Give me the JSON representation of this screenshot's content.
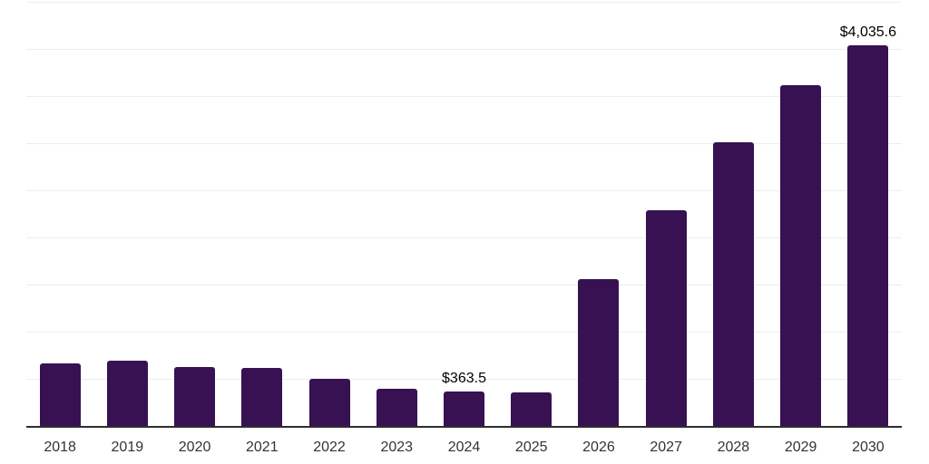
{
  "chart_data": {
    "type": "bar",
    "title": "",
    "xlabel": "",
    "ylabel": "",
    "categories": [
      "2018",
      "2019",
      "2020",
      "2021",
      "2022",
      "2023",
      "2024",
      "2025",
      "2026",
      "2027",
      "2028",
      "2029",
      "2030"
    ],
    "values": [
      663,
      692,
      625,
      615,
      500,
      394,
      363.5,
      360,
      1558,
      2289,
      3010,
      3616,
      4035.6
    ],
    "data_labels": [
      "",
      "",
      "",
      "",
      "",
      "",
      "$363.5",
      "",
      "",
      "",
      "",
      "",
      "$4,035.6"
    ],
    "ylim": [
      0,
      4500
    ],
    "gridline_step": 500,
    "grid": true,
    "y_tick_labels_visible": false,
    "legend_position": "none"
  },
  "colors": {
    "bar": "#371151",
    "gridline": "#ededed",
    "axis_line": "#2e2e2e",
    "tick_label": "#333333",
    "data_label": "#000000",
    "background": "#ffffff"
  }
}
